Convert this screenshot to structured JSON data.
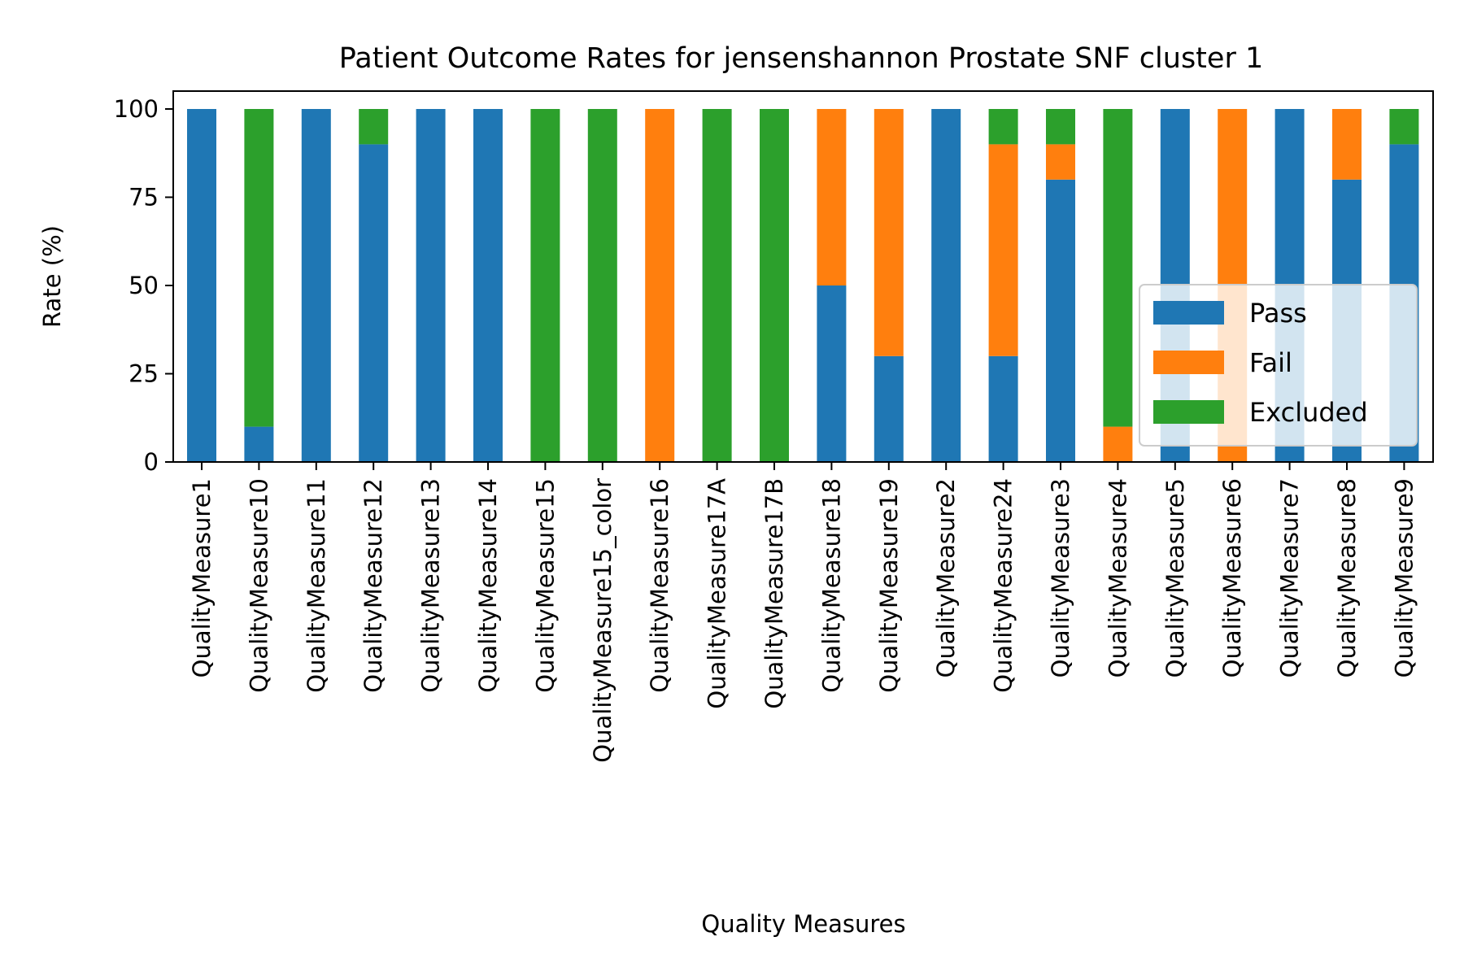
{
  "chart_data": {
    "type": "bar",
    "stacked": true,
    "title": "Patient Outcome Rates for jensenshannon Prostate SNF cluster 1",
    "xlabel": "Quality Measures",
    "ylabel": "Rate (%)",
    "ylim": [
      0,
      100
    ],
    "yticks": [
      0,
      25,
      50,
      75,
      100
    ],
    "grid": false,
    "legend_position": "lower-right",
    "categories": [
      "QualityMeasure1",
      "QualityMeasure10",
      "QualityMeasure11",
      "QualityMeasure12",
      "QualityMeasure13",
      "QualityMeasure14",
      "QualityMeasure15",
      "QualityMeasure15_color",
      "QualityMeasure16",
      "QualityMeasure17A",
      "QualityMeasure17B",
      "QualityMeasure18",
      "QualityMeasure19",
      "QualityMeasure2",
      "QualityMeasure24",
      "QualityMeasure3",
      "QualityMeasure4",
      "QualityMeasure5",
      "QualityMeasure6",
      "QualityMeasure7",
      "QualityMeasure8",
      "QualityMeasure9"
    ],
    "series": [
      {
        "name": "Pass",
        "color": "#1f77b4",
        "values": [
          100,
          10,
          100,
          90,
          100,
          100,
          0,
          0,
          0,
          0,
          0,
          50,
          30,
          100,
          30,
          80,
          0,
          100,
          0,
          100,
          80,
          90
        ]
      },
      {
        "name": "Fail",
        "color": "#ff7f0e",
        "values": [
          0,
          0,
          0,
          0,
          0,
          0,
          0,
          0,
          100,
          0,
          0,
          50,
          70,
          0,
          60,
          10,
          10,
          0,
          100,
          0,
          20,
          0
        ]
      },
      {
        "name": "Excluded",
        "color": "#2ca02c",
        "values": [
          0,
          90,
          0,
          10,
          0,
          0,
          100,
          100,
          0,
          100,
          100,
          0,
          0,
          0,
          10,
          10,
          90,
          0,
          0,
          0,
          0,
          10
        ]
      }
    ]
  }
}
